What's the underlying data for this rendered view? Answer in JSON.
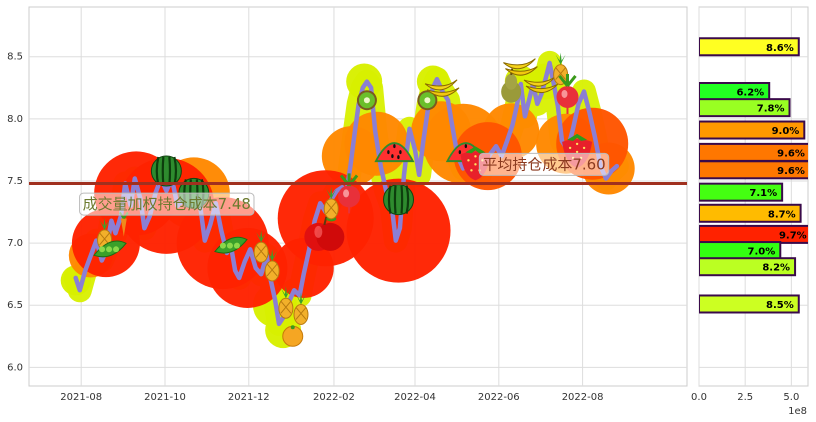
{
  "chart_data": [
    {
      "type": "line",
      "ylim": [
        5.85,
        8.9
      ],
      "yticks": [
        "6.0",
        "6.5",
        "7.0",
        "7.5",
        "8.0",
        "8.5"
      ],
      "yticks_values": [
        6.0,
        6.5,
        7.0,
        7.5,
        8.0,
        8.5
      ],
      "xticks": [
        "2021-08",
        "2021-10",
        "2021-12",
        "2022-02",
        "2022-04",
        "2022-06",
        "2022-08"
      ],
      "x_range": [
        "2021-06-24",
        "2022-10-16"
      ],
      "grid": true,
      "colors": {
        "price_line": "#8b7fd4",
        "cost_line": "#a0301f",
        "bubble_red": "#ff2200",
        "bubble_orange": "#ff8800",
        "bubble_yellow": "#d8f000"
      },
      "price_series": [
        [
          "2021-07-28",
          6.72
        ],
        [
          "2021-07-31",
          6.62
        ],
        [
          "2021-08-04",
          6.78
        ],
        [
          "2021-08-08",
          6.9
        ],
        [
          "2021-08-12",
          7.02
        ],
        [
          "2021-08-16",
          6.86
        ],
        [
          "2021-08-19",
          6.93
        ],
        [
          "2021-08-23",
          7.18
        ],
        [
          "2021-08-26",
          7.08
        ],
        [
          "2021-08-30",
          7.22
        ],
        [
          "2021-09-02",
          7.48
        ],
        [
          "2021-09-06",
          7.3
        ],
        [
          "2021-09-09",
          7.52
        ],
        [
          "2021-09-13",
          7.36
        ],
        [
          "2021-09-16",
          7.12
        ],
        [
          "2021-09-20",
          7.22
        ],
        [
          "2021-09-24",
          7.4
        ],
        [
          "2021-09-28",
          7.52
        ],
        [
          "2021-10-02",
          7.42
        ],
        [
          "2021-10-06",
          7.52
        ],
        [
          "2021-10-10",
          7.3
        ],
        [
          "2021-10-14",
          7.34
        ],
        [
          "2021-10-18",
          7.48
        ],
        [
          "2021-10-22",
          7.5
        ],
        [
          "2021-10-26",
          7.35
        ],
        [
          "2021-10-30",
          7.02
        ],
        [
          "2021-11-03",
          7.15
        ],
        [
          "2021-11-07",
          7.32
        ],
        [
          "2021-11-11",
          7.1
        ],
        [
          "2021-11-15",
          6.92
        ],
        [
          "2021-11-18",
          6.98
        ],
        [
          "2021-11-21",
          6.78
        ],
        [
          "2021-11-24",
          6.72
        ],
        [
          "2021-11-28",
          6.85
        ],
        [
          "2021-12-02",
          6.95
        ],
        [
          "2021-12-06",
          6.8
        ],
        [
          "2021-12-10",
          6.75
        ],
        [
          "2021-12-14",
          6.9
        ],
        [
          "2021-12-17",
          6.7
        ],
        [
          "2021-12-20",
          6.55
        ],
        [
          "2021-12-23",
          6.35
        ],
        [
          "2021-12-26",
          6.4
        ],
        [
          "2021-12-30",
          6.52
        ],
        [
          "2022-01-03",
          6.62
        ],
        [
          "2022-01-07",
          6.58
        ],
        [
          "2022-01-10",
          6.75
        ],
        [
          "2022-01-14",
          6.95
        ],
        [
          "2022-01-18",
          7.18
        ],
        [
          "2022-01-22",
          7.32
        ],
        [
          "2022-01-26",
          7.25
        ],
        [
          "2022-01-30",
          7.35
        ],
        [
          "2022-02-03",
          7.42
        ],
        [
          "2022-02-07",
          7.45
        ],
        [
          "2022-02-10",
          7.4
        ],
        [
          "2022-02-13",
          7.62
        ],
        [
          "2022-02-16",
          7.88
        ],
        [
          "2022-02-19",
          8.12
        ],
        [
          "2022-02-22",
          8.25
        ],
        [
          "2022-02-25",
          8.3
        ],
        [
          "2022-02-28",
          8.25
        ],
        [
          "2022-03-03",
          7.9
        ],
        [
          "2022-03-07",
          7.62
        ],
        [
          "2022-03-11",
          7.42
        ],
        [
          "2022-03-15",
          7.3
        ],
        [
          "2022-03-18",
          7.02
        ],
        [
          "2022-03-21",
          7.12
        ],
        [
          "2022-03-24",
          7.55
        ],
        [
          "2022-03-28",
          7.92
        ],
        [
          "2022-04-01",
          7.75
        ],
        [
          "2022-04-04",
          7.55
        ],
        [
          "2022-04-07",
          7.82
        ],
        [
          "2022-04-11",
          8.12
        ],
        [
          "2022-04-14",
          8.25
        ],
        [
          "2022-04-17",
          8.32
        ],
        [
          "2022-04-21",
          8.22
        ],
        [
          "2022-04-25",
          8.15
        ],
        [
          "2022-04-28",
          7.95
        ],
        [
          "2022-05-02",
          7.7
        ],
        [
          "2022-05-06",
          7.6
        ],
        [
          "2022-05-10",
          7.72
        ],
        [
          "2022-05-14",
          7.68
        ],
        [
          "2022-05-18",
          7.55
        ],
        [
          "2022-05-22",
          7.65
        ],
        [
          "2022-05-26",
          7.72
        ],
        [
          "2022-05-30",
          7.78
        ],
        [
          "2022-06-03",
          7.7
        ],
        [
          "2022-06-07",
          7.82
        ],
        [
          "2022-06-11",
          7.95
        ],
        [
          "2022-06-14",
          8.1
        ],
        [
          "2022-06-17",
          8.28
        ],
        [
          "2022-06-20",
          8.02
        ],
        [
          "2022-06-23",
          8.15
        ],
        [
          "2022-06-26",
          8.28
        ],
        [
          "2022-06-29",
          8.12
        ],
        [
          "2022-07-02",
          8.2
        ],
        [
          "2022-07-05",
          8.32
        ],
        [
          "2022-07-08",
          8.45
        ],
        [
          "2022-07-11",
          8.28
        ],
        [
          "2022-07-14",
          8.1
        ],
        [
          "2022-07-17",
          7.82
        ],
        [
          "2022-07-21",
          7.75
        ],
        [
          "2022-07-25",
          7.92
        ],
        [
          "2022-07-29",
          8.12
        ],
        [
          "2022-08-02",
          8.22
        ],
        [
          "2022-08-06",
          8.05
        ],
        [
          "2022-08-10",
          7.85
        ],
        [
          "2022-08-14",
          7.62
        ],
        [
          "2022-08-18",
          7.52
        ],
        [
          "2022-08-22",
          7.58
        ],
        [
          "2022-08-26",
          7.62
        ]
      ],
      "bubbles": [
        {
          "date": "2021-07-28",
          "price": 6.7,
          "r": 15,
          "c": "#d8f000"
        },
        {
          "date": "2021-08-08",
          "price": 6.9,
          "r": 22,
          "c": "#ff8800"
        },
        {
          "date": "2021-08-19",
          "price": 7.0,
          "r": 34,
          "c": "#ff2200"
        },
        {
          "date": "2021-09-10",
          "price": 7.4,
          "r": 42,
          "c": "#ff2200"
        },
        {
          "date": "2021-10-02",
          "price": 7.3,
          "r": 48,
          "c": "#ff2200"
        },
        {
          "date": "2021-10-22",
          "price": 7.4,
          "r": 36,
          "c": "#ff8800"
        },
        {
          "date": "2021-11-12",
          "price": 7.0,
          "r": 46,
          "c": "#ff2200"
        },
        {
          "date": "2021-11-30",
          "price": 6.8,
          "r": 40,
          "c": "#ff2200"
        },
        {
          "date": "2021-12-20",
          "price": 6.5,
          "r": 22,
          "c": "#d8f000"
        },
        {
          "date": "2021-12-26",
          "price": 6.3,
          "r": 18,
          "c": "#d8f000"
        },
        {
          "date": "2022-01-10",
          "price": 6.8,
          "r": 30,
          "c": "#ff2200"
        },
        {
          "date": "2022-01-26",
          "price": 7.2,
          "r": 48,
          "c": "#ff2200"
        },
        {
          "date": "2022-02-14",
          "price": 7.7,
          "r": 30,
          "c": "#ff8800"
        },
        {
          "date": "2022-02-23",
          "price": 8.3,
          "r": 18,
          "c": "#d8f000"
        },
        {
          "date": "2022-03-04",
          "price": 7.8,
          "r": 32,
          "c": "#ff8800"
        },
        {
          "date": "2022-03-20",
          "price": 7.1,
          "r": 52,
          "c": "#ff2200"
        },
        {
          "date": "2022-04-14",
          "price": 8.3,
          "r": 16,
          "c": "#d8f000"
        },
        {
          "date": "2022-04-20",
          "price": 7.9,
          "r": 30,
          "c": "#ff8800"
        },
        {
          "date": "2022-05-06",
          "price": 7.8,
          "r": 40,
          "c": "#ff8800"
        },
        {
          "date": "2022-05-24",
          "price": 7.7,
          "r": 34,
          "c": "#ff5500"
        },
        {
          "date": "2022-06-10",
          "price": 7.9,
          "r": 28,
          "c": "#ff8800"
        },
        {
          "date": "2022-06-17",
          "price": 8.3,
          "r": 16,
          "c": "#d8f000"
        },
        {
          "date": "2022-07-05",
          "price": 8.3,
          "r": 18,
          "c": "#d8f000"
        },
        {
          "date": "2022-07-20",
          "price": 7.8,
          "r": 30,
          "c": "#ff8800"
        },
        {
          "date": "2022-08-08",
          "price": 7.8,
          "r": 36,
          "c": "#ff5500"
        },
        {
          "date": "2022-08-20",
          "price": 7.6,
          "r": 26,
          "c": "#ff8800"
        }
      ],
      "fruits": [
        {
          "date": "2021-08-18",
          "price": 7.05,
          "icon": "pineapple"
        },
        {
          "date": "2021-08-22",
          "price": 6.95,
          "icon": "peapod"
        },
        {
          "date": "2021-09-01",
          "price": 7.15,
          "icon": "carrot"
        },
        {
          "date": "2021-10-02",
          "price": 7.58,
          "icon": "watermelon"
        },
        {
          "date": "2021-10-22",
          "price": 7.4,
          "icon": "watermelon"
        },
        {
          "date": "2021-11-18",
          "price": 6.98,
          "icon": "peapod"
        },
        {
          "date": "2021-12-10",
          "price": 6.95,
          "icon": "pineapple"
        },
        {
          "date": "2021-12-18",
          "price": 6.8,
          "icon": "pineapple"
        },
        {
          "date": "2021-12-28",
          "price": 6.5,
          "icon": "pineapple"
        },
        {
          "date": "2022-01-02",
          "price": 6.25,
          "icon": "orange"
        },
        {
          "date": "2022-01-08",
          "price": 6.45,
          "icon": "pineapple"
        },
        {
          "date": "2022-01-25",
          "price": 7.05,
          "icon": "apple"
        },
        {
          "date": "2022-01-30",
          "price": 7.3,
          "icon": "pineapple"
        },
        {
          "date": "2022-02-12",
          "price": 7.4,
          "icon": "radish"
        },
        {
          "date": "2022-02-25",
          "price": 8.15,
          "icon": "kiwi"
        },
        {
          "date": "2022-03-17",
          "price": 7.7,
          "icon": "watermelon-slice"
        },
        {
          "date": "2022-03-20",
          "price": 7.35,
          "icon": "watermelon"
        },
        {
          "date": "2022-04-10",
          "price": 8.15,
          "icon": "kiwi"
        },
        {
          "date": "2022-04-20",
          "price": 8.25,
          "icon": "banana"
        },
        {
          "date": "2022-05-08",
          "price": 7.7,
          "icon": "watermelon-slice"
        },
        {
          "date": "2022-05-15",
          "price": 7.65,
          "icon": "strawberry"
        },
        {
          "date": "2022-06-10",
          "price": 8.25,
          "icon": "pear"
        },
        {
          "date": "2022-06-16",
          "price": 8.42,
          "icon": "banana"
        },
        {
          "date": "2022-07-01",
          "price": 8.28,
          "icon": "banana"
        },
        {
          "date": "2022-07-16",
          "price": 8.38,
          "icon": "pineapple"
        },
        {
          "date": "2022-07-21",
          "price": 8.2,
          "icon": "radish"
        },
        {
          "date": "2022-07-28",
          "price": 7.75,
          "icon": "strawberry"
        }
      ],
      "cost_line": {
        "value": 7.48
      },
      "annotations": [
        {
          "text": "成交量加权持仓成本7.48",
          "date": "2021-08-02",
          "price": 7.31,
          "color": "#6b7a2e"
        },
        {
          "text": "平均持仓成本7.60",
          "date": "2022-05-20",
          "price": 7.63,
          "color": "#8b3a1f"
        }
      ]
    },
    {
      "type": "bar",
      "orientation": "horizontal",
      "xlim": [
        0,
        5.9
      ],
      "xticks": [
        "0.0",
        "2.5",
        "5.0"
      ],
      "xticks_values": [
        0,
        2.5,
        5.0
      ],
      "offset_label": "1e8",
      "grid": true,
      "bars": [
        {
          "price": 8.58,
          "value": 5.4,
          "label": "8.6%",
          "color": "#ffff22"
        },
        {
          "price": 8.22,
          "value": 3.8,
          "label": "6.2%",
          "color": "#22ff22"
        },
        {
          "price": 8.09,
          "value": 4.9,
          "label": "7.8%",
          "color": "#99ff22"
        },
        {
          "price": 7.91,
          "value": 5.7,
          "label": "9.0%",
          "color": "#ff9900"
        },
        {
          "price": 7.73,
          "value": 6.0,
          "label": "9.6%",
          "color": "#ff7700"
        },
        {
          "price": 7.59,
          "value": 6.0,
          "label": "9.6%",
          "color": "#ff7700"
        },
        {
          "price": 7.41,
          "value": 4.5,
          "label": "7.1%",
          "color": "#44ff11"
        },
        {
          "price": 7.24,
          "value": 5.5,
          "label": "8.7%",
          "color": "#ffbb00"
        },
        {
          "price": 7.07,
          "value": 6.1,
          "label": "9.7%",
          "color": "#ff2200"
        },
        {
          "price": 6.94,
          "value": 4.4,
          "label": "7.0%",
          "color": "#33ff11"
        },
        {
          "price": 6.81,
          "value": 5.2,
          "label": "8.2%",
          "color": "#bbff22"
        },
        {
          "price": 6.51,
          "value": 5.4,
          "label": "8.5%",
          "color": "#ccff22"
        }
      ]
    }
  ]
}
